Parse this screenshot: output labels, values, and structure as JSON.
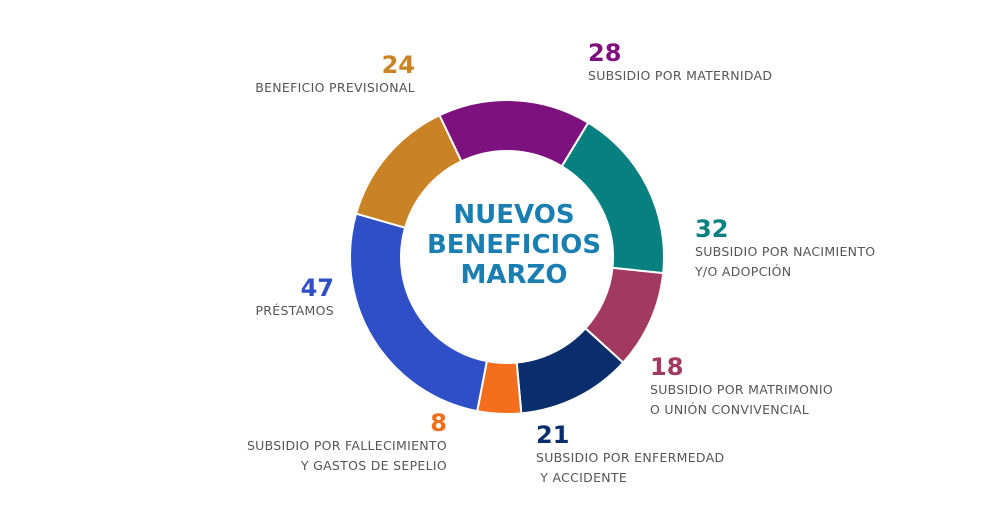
{
  "chart_data": {
    "type": "pie",
    "title_lines": [
      "NUEVOS",
      "BENEFICIOS",
      "MARZO"
    ],
    "slices": [
      {
        "value": 24,
        "label_lines": [
          "BENEFICIO PREVISIONAL"
        ],
        "color": "#c98224"
      },
      {
        "value": 28,
        "label_lines": [
          "SUBSIDIO POR MATERNIDAD"
        ],
        "color": "#7d127e"
      },
      {
        "value": 32,
        "label_lines": [
          "SUBSIDIO POR NACIMIENTO",
          "Y/O ADOPCIÓN"
        ],
        "color": "#08807f"
      },
      {
        "value": 18,
        "label_lines": [
          "SUBSIDIO POR MATRIMONIO",
          "O UNIÓN CONVIVENCIAL"
        ],
        "color": "#a13a5e"
      },
      {
        "value": 21,
        "label_lines": [
          "SUBSIDIO POR ENFERMEDAD",
          " Y ACCIDENTE"
        ],
        "color": "#0a2e6c"
      },
      {
        "value": 8,
        "label_lines": [
          "SUBSIDIO POR FALLECIMIENTO",
          "Y GASTOS DE SEPELIO"
        ],
        "color": "#f46e1e"
      },
      {
        "value": 47,
        "label_lines": [
          "PRÉSTAMOS"
        ],
        "color": "#2e4fc6"
      }
    ]
  }
}
